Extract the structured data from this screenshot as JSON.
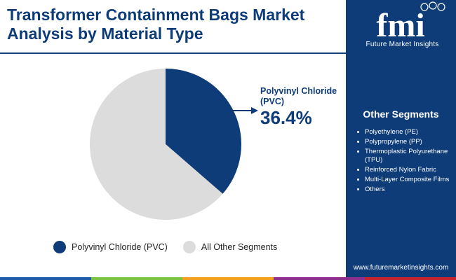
{
  "header": {
    "title": "Transformer Containment Bags Market Analysis by Material Type"
  },
  "brand": {
    "logo_letters": "fmi",
    "name": "Future Market Insights",
    "website": "www.futuremarketinsights.com"
  },
  "sidebar": {
    "title": "Other Segments",
    "items": [
      "Polyethylene (PE)",
      "Polypropylene (PP)",
      "Thermoplastic Polyurethane (TPU)",
      "Reinforced Nylon Fabric",
      "Multi-Layer Composite Films",
      "Others"
    ]
  },
  "chart_data": {
    "type": "pie",
    "categories": [
      "Polyvinyl Chloride (PVC)",
      "All Other Segments"
    ],
    "values": [
      36.4,
      63.6
    ],
    "colors": [
      "#0d3c78",
      "#dcdcdc"
    ],
    "legend": "bottom",
    "annotation": {
      "label": "Polyvinyl Chloride (PVC)",
      "value": "36.4%"
    }
  },
  "colors": {
    "brand_navy": "#0d3c78",
    "bar_segments": [
      "#1f5aa8",
      "#7cc242",
      "#f2a01d",
      "#8e2f8e",
      "#c8232c"
    ]
  }
}
